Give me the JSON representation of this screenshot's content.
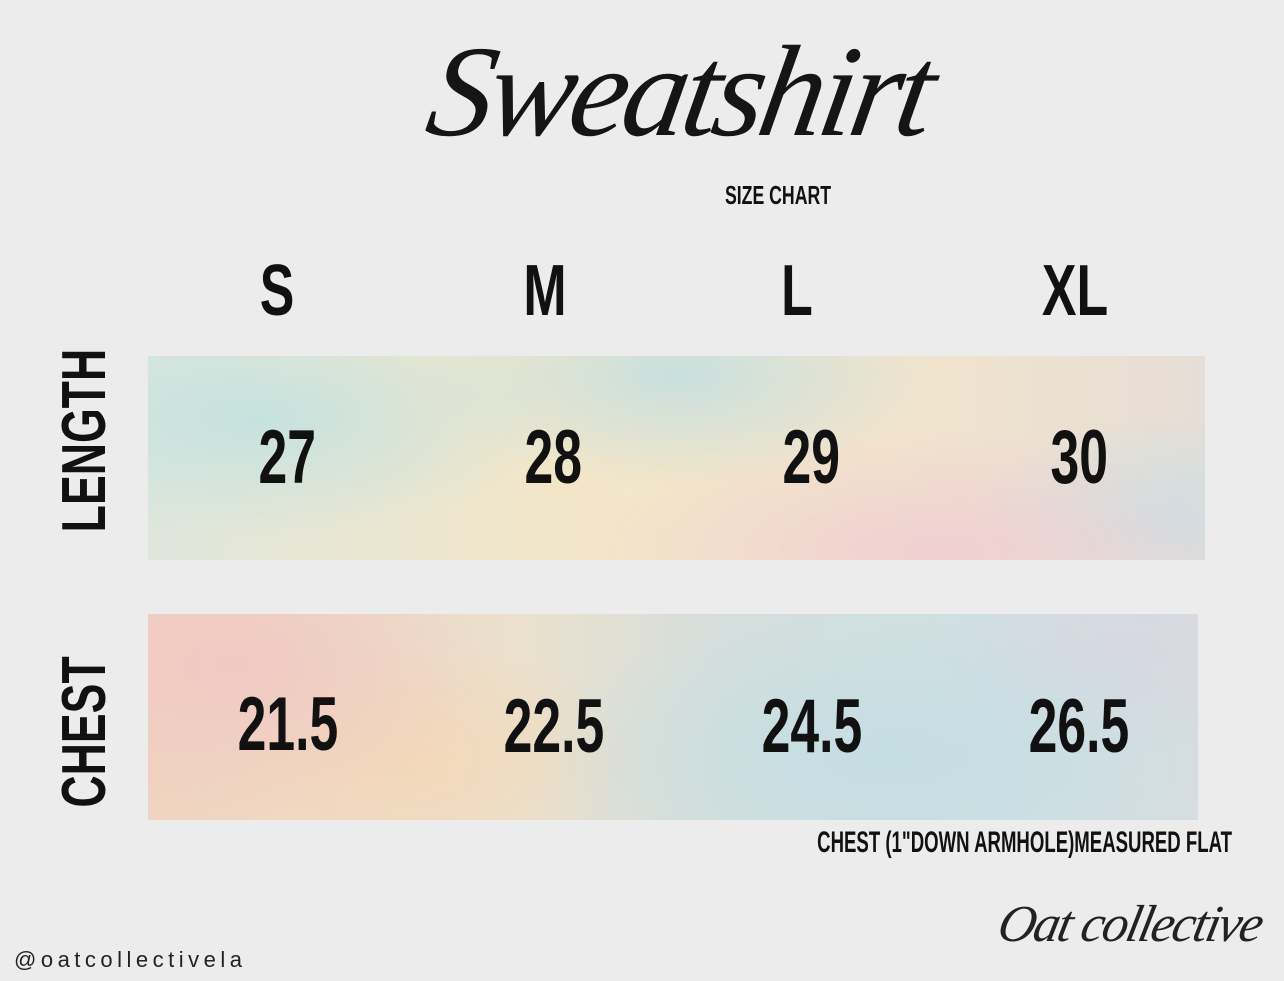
{
  "header": {
    "title": "Sweatshirt",
    "subtitle": "SIZE CHART"
  },
  "sizes": [
    "S",
    "M",
    "L",
    "XL"
  ],
  "rows": [
    {
      "label": "LENGTH",
      "values": [
        "27",
        "28",
        "29",
        "30"
      ]
    },
    {
      "label": "CHEST",
      "values": [
        "21.5",
        "22.5",
        "24.5",
        "26.5"
      ]
    }
  ],
  "note": "CHEST (1\"DOWN ARMHOLE)MEASURED FLAT",
  "footer": {
    "handle": "@oatcollectivela",
    "logo": "Oat collective"
  },
  "colors": {
    "background": "#ececec",
    "text": "#111111"
  }
}
